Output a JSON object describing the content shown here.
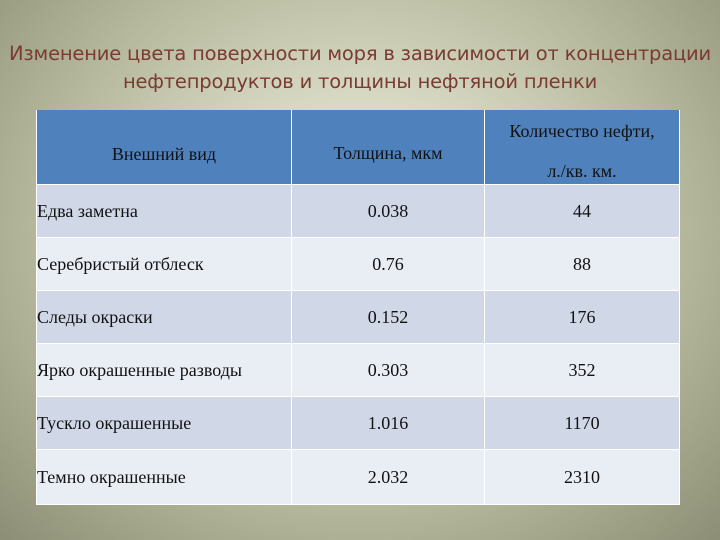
{
  "title": {
    "line1": "Изменение цвета поверхности моря в зависимости от концентрации",
    "line2": "нефтепродуктов и толщины нефтяной пленки"
  },
  "table": {
    "headers": {
      "appearance": "Внешний вид",
      "thickness": "Толщина, мкм",
      "oil_amount_line1": "Количество нефти,",
      "oil_amount_line2": "л./кв. км."
    },
    "rows": [
      {
        "appearance": "Едва заметна",
        "thickness": "0.038",
        "oil_amount": "44"
      },
      {
        "appearance": "Серебристый отблеск",
        "thickness": "0.76",
        "oil_amount": "88"
      },
      {
        "appearance": "Следы окраски",
        "thickness": "0.152",
        "oil_amount": "176"
      },
      {
        "appearance": "Ярко окрашенные разводы",
        "thickness": "0.303",
        "oil_amount": "352"
      },
      {
        "appearance": "Тускло окрашенные",
        "thickness": "1.016",
        "oil_amount": "1170"
      },
      {
        "appearance": "Темно окрашенные",
        "thickness": "2.032",
        "oil_amount": "2310"
      }
    ]
  },
  "colors": {
    "title": "#7b3a32",
    "header_bg": "#4f81bd",
    "row_odd_bg": "#d0d8e8",
    "row_even_bg": "#e9edf4"
  }
}
